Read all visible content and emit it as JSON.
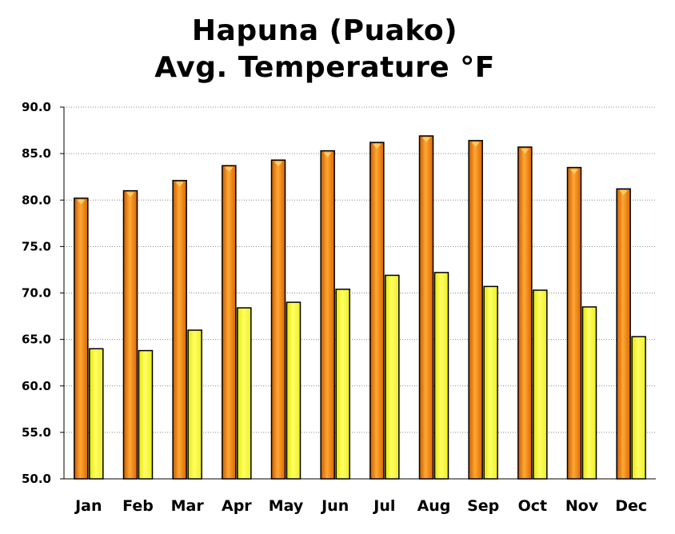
{
  "chart_data": {
    "type": "bar",
    "title_line1": "Hapuna (Puako)",
    "title_line2": "Avg. Temperature °F",
    "categories": [
      "Jan",
      "Feb",
      "Mar",
      "Apr",
      "May",
      "Jun",
      "Jul",
      "Aug",
      "Sep",
      "Oct",
      "Nov",
      "Dec"
    ],
    "series": [
      {
        "values": [
          80.2,
          81.0,
          82.1,
          83.7,
          84.3,
          85.3,
          86.2,
          86.9,
          86.4,
          85.7,
          83.5,
          81.2
        ],
        "color": "#f08000"
      },
      {
        "values": [
          64.0,
          63.8,
          66.0,
          68.4,
          69.0,
          70.4,
          71.9,
          72.2,
          70.7,
          70.3,
          68.5,
          65.3
        ],
        "color": "#ffff33"
      }
    ],
    "ylim": [
      50.0,
      90.0
    ],
    "yticks": [
      "50.0",
      "55.0",
      "60.0",
      "65.0",
      "70.0",
      "75.0",
      "80.0",
      "85.0",
      "90.0"
    ],
    "grid": true
  }
}
